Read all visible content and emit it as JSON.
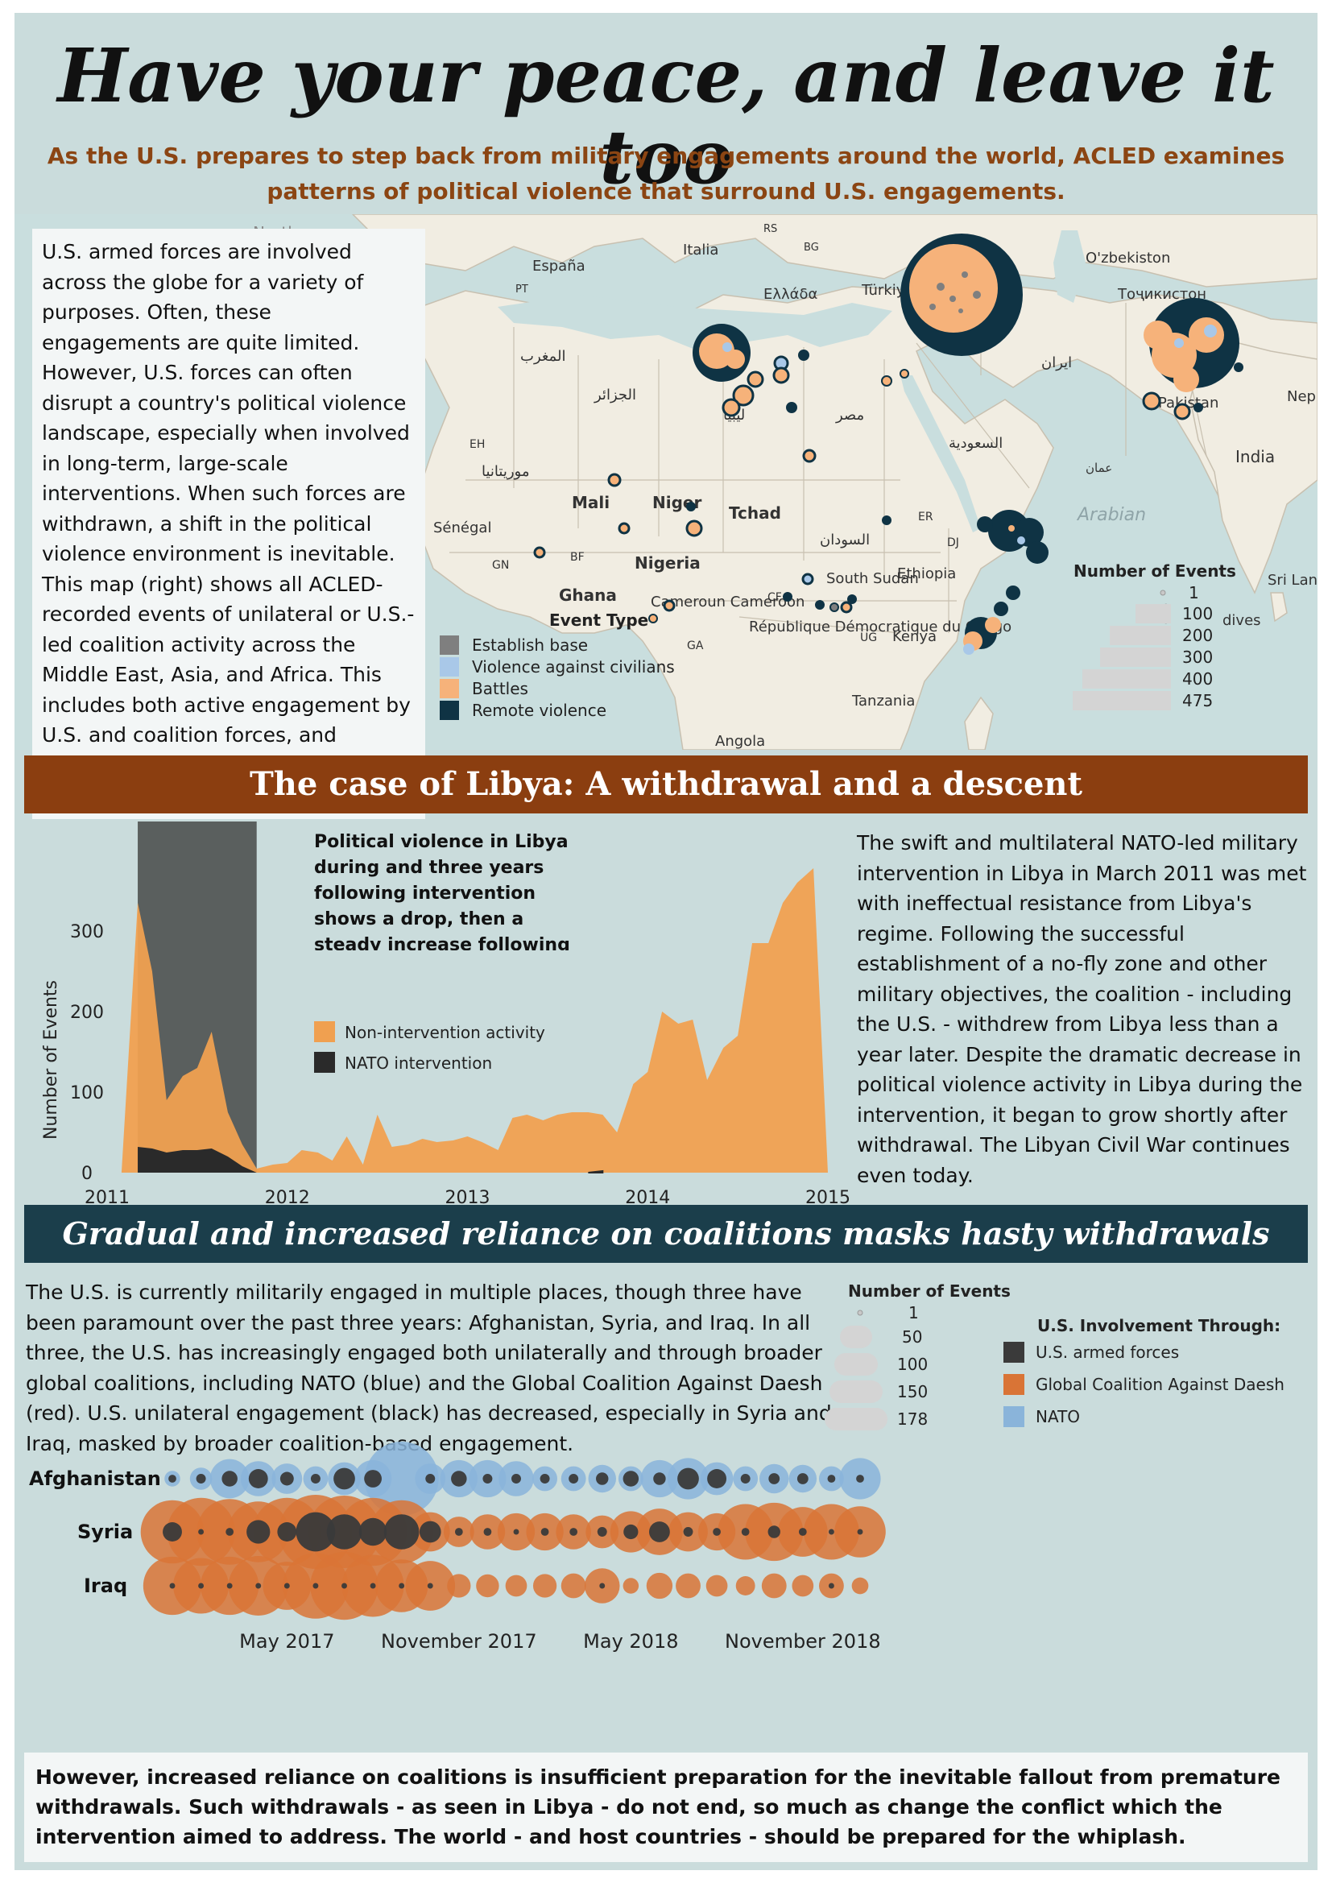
{
  "header": {
    "title": "Have your peace, and leave it too",
    "subtitle": "As the U.S. prepares to step back from military engagements around the world, ACLED examines patterns of political violence that surround U.S. engagements."
  },
  "intro": {
    "text": "U.S. armed forces are involved across the globe for a variety of purposes. Often, these engagements are quite limited. However, U.S. forces can often disrupt a country's political violence landscape, especially when involved in long-term, large-scale interventions. When such forces are withdrawn, a shift in the political violence environment is inevitable. This map (right) shows all ACLED-recorded events of unilateral or U.S.-led coalition activity across the Middle East, Asia, and Africa. This includes both active engagement by U.S. and coalition forces, and targeted attacks on U.S. and coalition forces."
  },
  "map": {
    "place_labels": [
      "España",
      "Italia",
      "Ελλάδα",
      "Türkiye",
      "O'zbekiston",
      "Тоҷикистон",
      "المغرب",
      "الجزائر",
      "ليبيا",
      "مصر",
      "السعودية",
      "ایران",
      "Pakistan",
      "India",
      "Nep",
      "Mali",
      "Niger",
      "Tchad",
      "السودان",
      "Nigeria",
      "Ghana",
      "Cameroun Cameroon",
      "République Démocratique du Congo",
      "Ethiopia",
      "South Sudan",
      "Kenya",
      "Tanzania",
      "Angola",
      "Sénégal",
      "موريتانيا",
      "Arabian",
      "Sri Lanka",
      "EH",
      "GN",
      "BF",
      "GA",
      "UG",
      "ER",
      "DJ",
      "BG",
      "RS",
      "North",
      "dives",
      "CF",
      "PT",
      "عمان"
    ],
    "legend_event_title": "Event Type",
    "event_types": [
      {
        "label": "Establish base",
        "color": "#7f7f7f"
      },
      {
        "label": "Violence against civilians",
        "color": "#a9c8e8"
      },
      {
        "label": "Battles",
        "color": "#f6b27a"
      },
      {
        "label": "Remote violence",
        "color": "#0f3344"
      }
    ],
    "legend_size_title": "Number of Events",
    "size_values": [
      "1",
      "100",
      "200",
      "300",
      "400",
      "475"
    ],
    "colors": {
      "land": "#f1ede2",
      "water": "#c9dede",
      "border": "#c8c0b0"
    }
  },
  "libya": {
    "banner": "The case of Libya: A withdrawal and a descent",
    "annotation": "Political violence in Libya during and three years following intervention shows a drop, then a steady increase following withdrawal.",
    "body": "The swift and multilateral NATO-led military intervention in Libya in March 2011 was met with ineffectual resistance from Libya's regime. Following the successful establishment of a no-fly zone and other military objectives, the coalition - including the U.S. - withdrew from Libya less than a year later. Despite the dramatic decrease in political violence activity in Libya during the intervention, it began to grow shortly after withdrawal. The Libyan Civil War continues even today."
  },
  "chart_data": [
    {
      "type": "area",
      "ylabel": "Number of Events",
      "xlim": [
        2011.0,
        2015.0
      ],
      "ylim": [
        0,
        400
      ],
      "xticks": [
        "2011",
        "2012",
        "2013",
        "2014",
        "2015"
      ],
      "yticks": [
        "0",
        "100",
        "200",
        "300"
      ],
      "nato_period": [
        2011.17,
        2011.83
      ],
      "series": [
        {
          "name": "Non-intervention activity",
          "color": "#f0a050",
          "x": [
            2011.0,
            2011.08,
            2011.17,
            2011.25,
            2011.33,
            2011.42,
            2011.5,
            2011.58,
            2011.67,
            2011.75,
            2011.83,
            2011.92,
            2012.0,
            2012.08,
            2012.17,
            2012.25,
            2012.33,
            2012.42,
            2012.5,
            2012.58,
            2012.67,
            2012.75,
            2012.83,
            2012.92,
            2013.0,
            2013.08,
            2013.17,
            2013.25,
            2013.33,
            2013.42,
            2013.5,
            2013.58,
            2013.67,
            2013.75,
            2013.83,
            2013.92,
            2014.0,
            2014.08,
            2014.17,
            2014.25,
            2014.33,
            2014.42,
            2014.5,
            2014.58,
            2014.67,
            2014.75,
            2014.83,
            2014.92,
            2015.0
          ],
          "values": [
            0,
            0,
            335,
            250,
            90,
            120,
            130,
            175,
            75,
            35,
            5,
            10,
            12,
            28,
            25,
            15,
            45,
            10,
            72,
            32,
            35,
            42,
            38,
            40,
            45,
            38,
            28,
            68,
            72,
            65,
            72,
            75,
            75,
            72,
            50,
            110,
            125,
            200,
            185,
            190,
            115,
            155,
            170,
            285,
            285,
            335,
            360,
            378,
            0
          ]
        },
        {
          "name": "NATO intervention",
          "color": "#2a2a2a",
          "x": [
            2011.17,
            2011.25,
            2011.33,
            2011.42,
            2011.5,
            2011.58,
            2011.67,
            2011.75,
            2011.83,
            2013.67,
            2013.75
          ],
          "values": [
            32,
            30,
            25,
            28,
            28,
            30,
            20,
            8,
            0,
            0,
            2
          ]
        }
      ]
    },
    {
      "type": "scatter",
      "ylabel": "",
      "rows": [
        "Afghanistan",
        "Syria",
        "Iraq"
      ],
      "xticks": [
        "May 2017",
        "November 2017",
        "May 2018",
        "November 2018"
      ],
      "months": 25,
      "series": [
        {
          "name": "NATO",
          "color": "#8ab4da",
          "row": "Afghanistan",
          "values": [
            8,
            16,
            50,
            40,
            30,
            20,
            35,
            45,
            178,
            30,
            45,
            45,
            40,
            20,
            20,
            25,
            20,
            45,
            55,
            35,
            20,
            28,
            25,
            20,
            55
          ]
        },
        {
          "name": "U.S. armed forces",
          "color": "#3a3a3a",
          "row": "Afghanistan",
          "values": [
            2,
            3,
            8,
            12,
            6,
            3,
            15,
            10,
            0,
            3,
            8,
            3,
            3,
            3,
            3,
            5,
            8,
            5,
            15,
            12,
            3,
            4,
            4,
            2,
            2
          ]
        },
        {
          "name": "Global Coalition Against Daesh",
          "color": "#d97436",
          "row": "Syria",
          "values": [
            130,
            150,
            140,
            120,
            150,
            178,
            170,
            150,
            130,
            50,
            30,
            40,
            45,
            45,
            40,
            35,
            55,
            70,
            50,
            45,
            100,
            110,
            80,
            100,
            85
          ]
        },
        {
          "name": "U.S. armed forces",
          "color": "#3a3a3a",
          "row": "Syria",
          "values": [
            12,
            1,
            2,
            18,
            12,
            50,
            40,
            25,
            40,
            15,
            2,
            2,
            1,
            2,
            2,
            3,
            7,
            14,
            3,
            2,
            2,
            5,
            2,
            1,
            1
          ]
        },
        {
          "name": "Global Coalition Against Daesh",
          "color": "#d97436",
          "row": "Iraq",
          "values": [
            110,
            100,
            110,
            115,
            75,
            140,
            150,
            125,
            90,
            80,
            18,
            17,
            15,
            18,
            20,
            40,
            8,
            22,
            20,
            15,
            12,
            20,
            15,
            20,
            9
          ]
        },
        {
          "name": "U.S. armed forces",
          "color": "#3a3a3a",
          "row": "Iraq",
          "values": [
            1,
            1,
            1,
            1,
            1,
            1,
            1,
            1,
            1,
            1,
            0,
            0,
            0,
            0,
            0,
            1,
            0,
            0,
            0,
            0,
            0,
            0,
            0,
            1,
            0
          ]
        }
      ]
    }
  ],
  "coalitions": {
    "banner": "Gradual and increased reliance on coalitions masks hasty withdrawals",
    "body": "The U.S. is currently militarily engaged in multiple places, though three have been paramount over the past three years: Afghanistan, Syria, and Iraq. In all three, the U.S. has increasingly engaged both unilaterally and through broader global coalitions, including NATO  (blue) and the Global Coalition Against Daesh (red). U.S. unilateral engagement (black) has decreased, especially in Syria and Iraq, masked by broader coalition-based engagement.",
    "size_legend_title": "Number of Events",
    "size_values": [
      "1",
      "50",
      "100",
      "150",
      "178"
    ],
    "involvement_title": "U.S. Involvement Through:",
    "involvement": [
      {
        "label": "U.S. armed forces",
        "color": "#3a3a3a"
      },
      {
        "label": "Global Coalition Against Daesh",
        "color": "#d97436"
      },
      {
        "label": "NATO",
        "color": "#8ab4da"
      }
    ]
  },
  "closing": {
    "text": "However, increased reliance on coalitions is insufficient preparation for the inevitable fallout from premature withdrawals. Such withdrawals - as seen in Libya - do not end, so much as change the conflict which the intervention aimed to address. The world - and host countries - should be prepared for the whiplash."
  }
}
